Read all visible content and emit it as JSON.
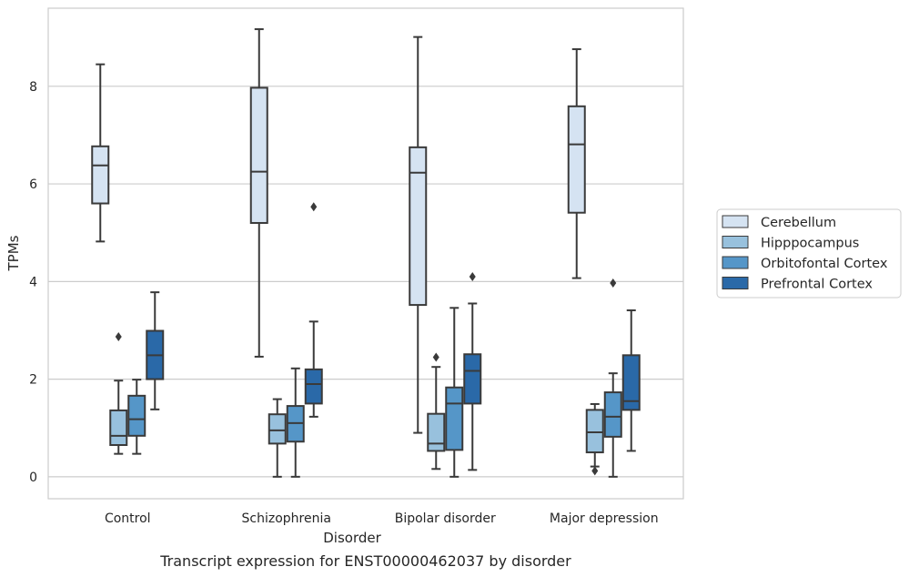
{
  "chart_data": {
    "type": "box",
    "caption": "Transcript expression for ENST00000462037 by disorder",
    "xlabel": "Disorder",
    "ylabel": "TPMs",
    "ylim": [
      -0.45,
      9.6
    ],
    "yticks": [
      0,
      2,
      4,
      6,
      8
    ],
    "grid": "horizontal",
    "legend_position": "right",
    "categories": [
      "Control",
      "Schizophrenia",
      "Bipolar disorder",
      "Major depression"
    ],
    "series": [
      {
        "name": "Cerebellum",
        "color": "#d5e3f2",
        "boxes": [
          {
            "whislo": 4.82,
            "q1": 5.6,
            "med": 6.38,
            "q3": 6.77,
            "whishi": 8.45,
            "fliers": []
          },
          {
            "whislo": 2.46,
            "q1": 5.2,
            "med": 6.25,
            "q3": 7.97,
            "whishi": 9.17,
            "fliers": []
          },
          {
            "whislo": 0.9,
            "q1": 3.52,
            "med": 6.23,
            "q3": 6.75,
            "whishi": 9.01,
            "fliers": []
          },
          {
            "whislo": 4.07,
            "q1": 5.41,
            "med": 6.81,
            "q3": 7.59,
            "whishi": 8.76,
            "fliers": []
          }
        ]
      },
      {
        "name": "Hipppocampus",
        "color": "#98c1dd",
        "boxes": [
          {
            "whislo": 0.47,
            "q1": 0.65,
            "med": 0.84,
            "q3": 1.36,
            "whishi": 1.97,
            "fliers": [
              2.87
            ]
          },
          {
            "whislo": 0.0,
            "q1": 0.68,
            "med": 0.95,
            "q3": 1.28,
            "whishi": 1.59,
            "fliers": []
          },
          {
            "whislo": 0.16,
            "q1": 0.53,
            "med": 0.68,
            "q3": 1.29,
            "whishi": 2.25,
            "fliers": [
              2.45
            ]
          },
          {
            "whislo": 0.21,
            "q1": 0.5,
            "med": 0.91,
            "q3": 1.37,
            "whishi": 1.49,
            "fliers": [
              0.12
            ]
          }
        ]
      },
      {
        "name": "Orbitofontal Cortex",
        "color": "#5596c8",
        "boxes": [
          {
            "whislo": 0.47,
            "q1": 0.84,
            "med": 1.18,
            "q3": 1.66,
            "whishi": 1.99,
            "fliers": []
          },
          {
            "whislo": 0.0,
            "q1": 0.72,
            "med": 1.1,
            "q3": 1.45,
            "whishi": 2.22,
            "fliers": []
          },
          {
            "whislo": 0.0,
            "q1": 0.55,
            "med": 1.5,
            "q3": 1.83,
            "whishi": 3.46,
            "fliers": []
          },
          {
            "whislo": 0.0,
            "q1": 0.82,
            "med": 1.23,
            "q3": 1.73,
            "whishi": 2.12,
            "fliers": [
              3.97
            ]
          }
        ]
      },
      {
        "name": "Prefrontal Cortex",
        "color": "#2a69a8",
        "boxes": [
          {
            "whislo": 1.38,
            "q1": 2.0,
            "med": 2.49,
            "q3": 2.99,
            "whishi": 3.78,
            "fliers": []
          },
          {
            "whislo": 1.23,
            "q1": 1.5,
            "med": 1.9,
            "q3": 2.2,
            "whishi": 3.18,
            "fliers": [
              5.53
            ]
          },
          {
            "whislo": 0.14,
            "q1": 1.5,
            "med": 2.17,
            "q3": 2.51,
            "whishi": 3.55,
            "fliers": [
              4.1
            ]
          },
          {
            "whislo": 0.53,
            "q1": 1.37,
            "med": 1.55,
            "q3": 2.49,
            "whishi": 3.41,
            "fliers": []
          }
        ]
      }
    ]
  }
}
